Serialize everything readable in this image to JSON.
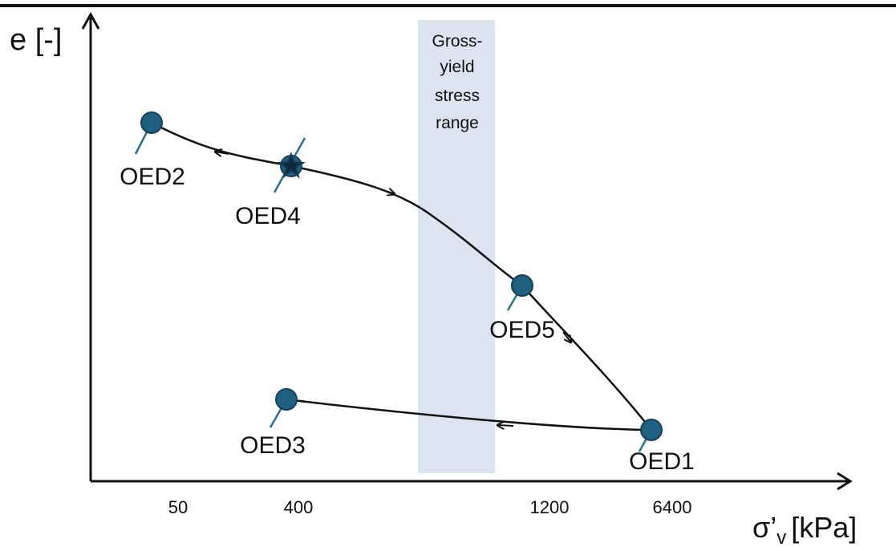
{
  "y_axis_label": "e [-]",
  "x_axis_label": {
    "symbol": "σ’",
    "subscript": "v",
    "unit": "[kPa]"
  },
  "x_tick_labels": [
    "50",
    "400",
    "1200",
    "6400"
  ],
  "band_label": [
    "Gross-",
    "yield",
    "stress",
    "range"
  ],
  "points": [
    "OED1",
    "OED2",
    "OED3",
    "OED4",
    "OED5"
  ]
}
